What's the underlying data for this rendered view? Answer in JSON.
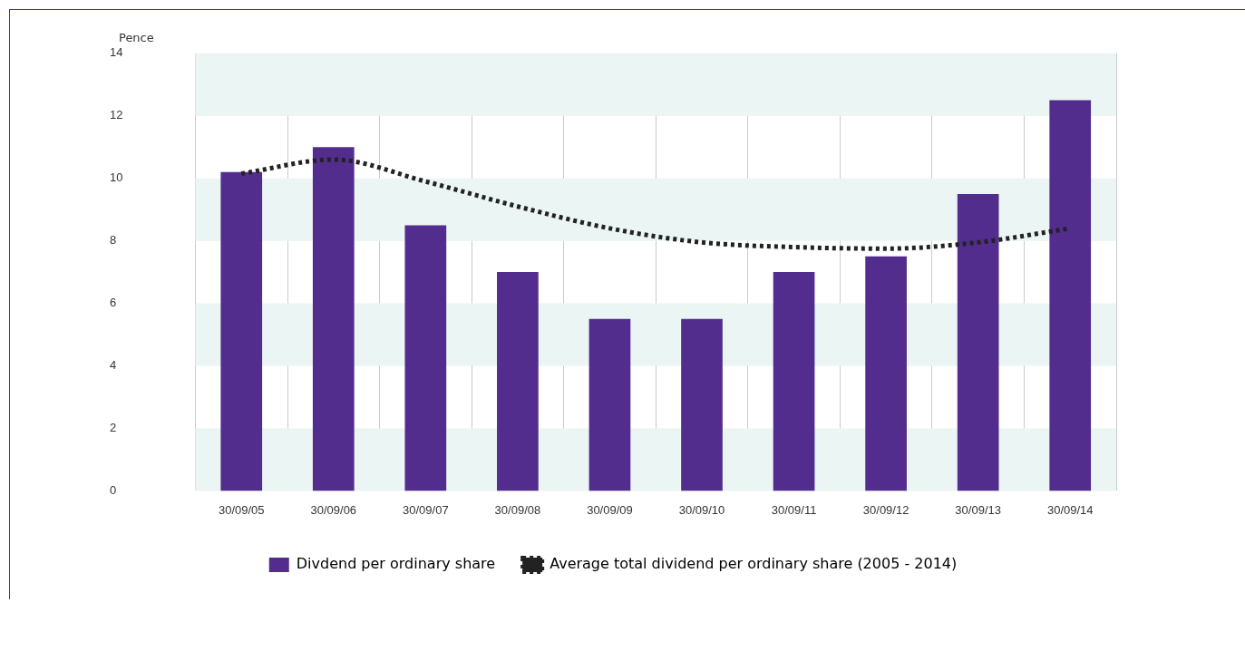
{
  "chart_data": {
    "type": "bar",
    "ylabel": "Pence",
    "categories": [
      "30/09/05",
      "30/09/06",
      "30/09/07",
      "30/09/08",
      "30/09/09",
      "30/09/10",
      "30/09/11",
      "30/09/12",
      "30/09/13",
      "30/09/14"
    ],
    "series": [
      {
        "name": "Divdend per ordinary share",
        "color": "#532d8e",
        "values": [
          10.2,
          11,
          8.5,
          7,
          5.5,
          5.5,
          7,
          7.5,
          9.5,
          12.5
        ]
      },
      {
        "name": "Average total dividend per ordinary share (2005 - 2014)",
        "type": "line",
        "color": "#222222",
        "line_style": "dotted",
        "marker": "none",
        "values": [
          10.15,
          10.6,
          9.9,
          9.1,
          8.4,
          7.95,
          7.8,
          7.75,
          7.95,
          8.4
        ]
      }
    ],
    "ylim": [
      0,
      14
    ],
    "yticks": [
      0,
      2,
      4,
      6,
      8,
      10,
      12,
      14
    ],
    "grid": "x",
    "legend": "bottom",
    "bands": [
      {
        "axis": "y",
        "from": 0,
        "to": 2,
        "color": "#ebf5f3"
      },
      {
        "axis": "y",
        "from": 4,
        "to": 6,
        "color": "#ebf5f3"
      },
      {
        "axis": "y",
        "from": 8,
        "to": 10,
        "color": "#ebf5f3"
      },
      {
        "axis": "y",
        "from": 12,
        "to": 14,
        "color": "#ebf5f3"
      }
    ]
  }
}
